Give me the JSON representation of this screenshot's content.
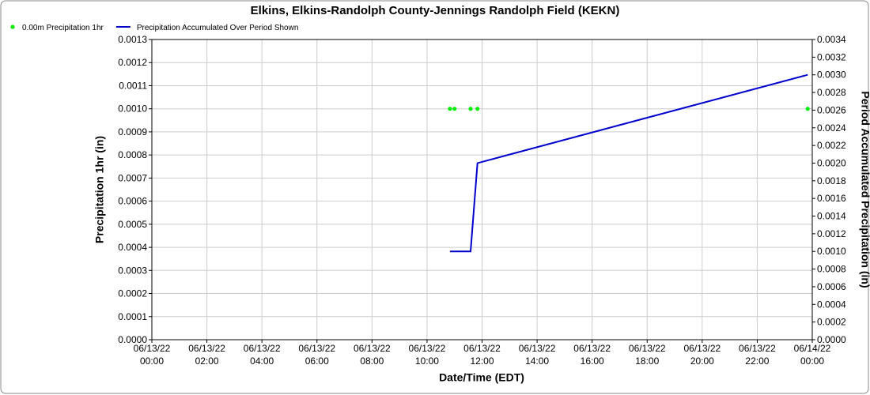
{
  "chart_data": {
    "type": "scatter-line",
    "title": "Elkins, Elkins-Randolph County-Jennings Randolph Field (KEKN)",
    "x_label": "Date/Time (EDT)",
    "y_label": "Precipitation 1hr (in)",
    "y2_label": "Period Accumulated Precipitation (in)",
    "grid": true,
    "xlim": [
      "06/13/22 00:00",
      "06/14/22 00:00"
    ],
    "xticks": [
      "06/13/22 00:00",
      "06/13/22 02:00",
      "06/13/22 04:00",
      "06/13/22 06:00",
      "06/13/22 08:00",
      "06/13/22 10:00",
      "06/13/22 12:00",
      "06/13/22 14:00",
      "06/13/22 16:00",
      "06/13/22 18:00",
      "06/13/22 20:00",
      "06/13/22 22:00",
      "06/14/22 00:00"
    ],
    "ylim": [
      0,
      0.0013
    ],
    "yticks": [
      {
        "value": 0,
        "label": "0.0000"
      },
      {
        "value": 0.0001,
        "label": "0.0001"
      },
      {
        "value": 0.0002,
        "label": "0.0002"
      },
      {
        "value": 0.0003,
        "label": "0.0003"
      },
      {
        "value": 0.0004,
        "label": "0.0004"
      },
      {
        "value": 0.0005,
        "label": "0.0005"
      },
      {
        "value": 0.0006,
        "label": "0.0006"
      },
      {
        "value": 0.0007,
        "label": "0.0007"
      },
      {
        "value": 0.0008,
        "label": "0.0008"
      },
      {
        "value": 0.0009,
        "label": "0.0009"
      },
      {
        "value": 0.001,
        "label": "0.0010"
      },
      {
        "value": 0.0011,
        "label": "0.0011"
      },
      {
        "value": 0.0012,
        "label": "0.0012"
      },
      {
        "value": 0.0013,
        "label": "0.0013"
      }
    ],
    "y2lim": [
      0,
      0.0034
    ],
    "y2ticks": [
      {
        "value": 0,
        "label": "0.0000"
      },
      {
        "value": 0.0002,
        "label": "0.0002"
      },
      {
        "value": 0.0004,
        "label": "0.0004"
      },
      {
        "value": 0.0006,
        "label": "0.0006"
      },
      {
        "value": 0.0008,
        "label": "0.0008"
      },
      {
        "value": 0.001,
        "label": "0.0010"
      },
      {
        "value": 0.0012,
        "label": "0.0012"
      },
      {
        "value": 0.0014,
        "label": "0.0014"
      },
      {
        "value": 0.0016,
        "label": "0.0016"
      },
      {
        "value": 0.0018,
        "label": "0.0018"
      },
      {
        "value": 0.002,
        "label": "0.0020"
      },
      {
        "value": 0.0022,
        "label": "0.0022"
      },
      {
        "value": 0.0024,
        "label": "0.0024"
      },
      {
        "value": 0.0026,
        "label": "0.0026"
      },
      {
        "value": 0.0028,
        "label": "0.0028"
      },
      {
        "value": 0.003,
        "label": "0.0030"
      },
      {
        "value": 0.0032,
        "label": "0.0032"
      },
      {
        "value": 0.0034,
        "label": "0.0034"
      }
    ],
    "series": [
      {
        "name": "0.00m Precipitation 1hr",
        "color": "#00ee00",
        "type": "scatter",
        "x": [
          "06/13/22 10:50",
          "06/13/22 11:00",
          "06/13/22 11:35",
          "06/13/22 11:50",
          "06/13/22 23:50"
        ],
        "values": [
          0.001,
          0.001,
          0.001,
          0.001,
          0.001
        ]
      },
      {
        "name": "Precipitation Accumulated Over Period Shown",
        "color": "#0000cc",
        "type": "line",
        "axis": "y2",
        "x": [
          "06/13/22 10:50",
          "06/13/22 11:35",
          "06/13/22 11:50",
          "06/13/22 23:50"
        ],
        "values": [
          0.001,
          0.001,
          0.002,
          0.003
        ]
      }
    ]
  }
}
